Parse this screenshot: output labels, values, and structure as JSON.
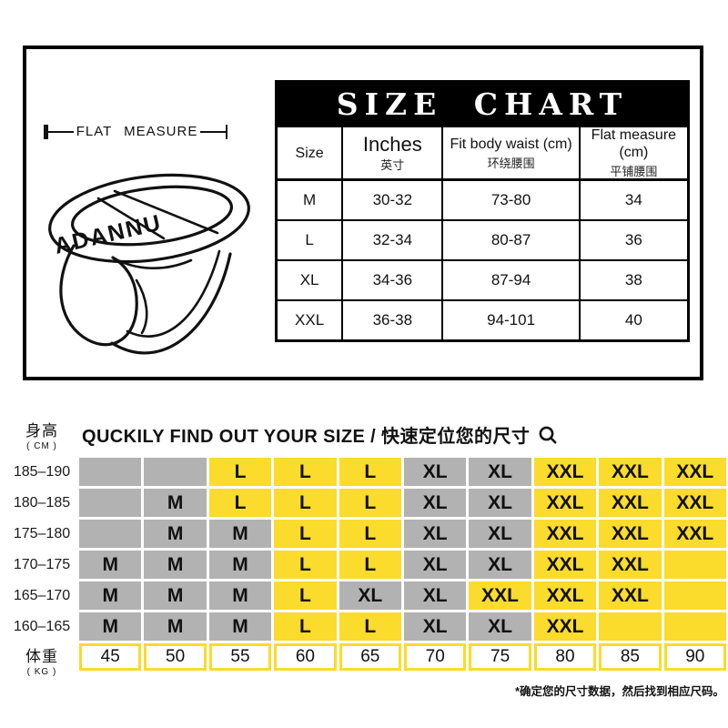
{
  "top_section": {
    "flat_measure_label": "FLAT MEASURE",
    "brand_text": "ADANNU",
    "size_chart": {
      "title": "SIZE CHART",
      "columns": [
        {
          "en": "Size",
          "zh": ""
        },
        {
          "en": "Inches",
          "zh": "英寸"
        },
        {
          "en": "Fit body waist (cm)",
          "zh": "环绕腰围"
        },
        {
          "en": "Flat measure (cm)",
          "zh": "平铺腰围"
        }
      ],
      "rows": [
        [
          "M",
          "30-32",
          "73-80",
          "34"
        ],
        [
          "L",
          "32-34",
          "80-87",
          "36"
        ],
        [
          "XL",
          "34-36",
          "87-94",
          "38"
        ],
        [
          "XXL",
          "36-38",
          "94-101",
          "40"
        ]
      ]
    }
  },
  "size_finder": {
    "height_label": "身高",
    "height_unit": "( CM )",
    "title": "QUCKILY FIND OUT YOUR SIZE / 快速定位您的尺寸",
    "search_icon": "magnifier-icon",
    "grid": {
      "rows": [
        {
          "height": "185–190",
          "cells": [
            {
              "v": "",
              "bg": "g"
            },
            {
              "v": "",
              "bg": "g"
            },
            {
              "v": "L",
              "bg": "y"
            },
            {
              "v": "L",
              "bg": "y"
            },
            {
              "v": "L",
              "bg": "y"
            },
            {
              "v": "XL",
              "bg": "g"
            },
            {
              "v": "XL",
              "bg": "g"
            },
            {
              "v": "XXL",
              "bg": "y"
            },
            {
              "v": "XXL",
              "bg": "y"
            },
            {
              "v": "XXL",
              "bg": "y"
            }
          ]
        },
        {
          "height": "180–185",
          "cells": [
            {
              "v": "",
              "bg": "g"
            },
            {
              "v": "M",
              "bg": "g"
            },
            {
              "v": "L",
              "bg": "y"
            },
            {
              "v": "L",
              "bg": "y"
            },
            {
              "v": "L",
              "bg": "y"
            },
            {
              "v": "XL",
              "bg": "g"
            },
            {
              "v": "XL",
              "bg": "g"
            },
            {
              "v": "XXL",
              "bg": "y"
            },
            {
              "v": "XXL",
              "bg": "y"
            },
            {
              "v": "XXL",
              "bg": "y"
            }
          ]
        },
        {
          "height": "175–180",
          "cells": [
            {
              "v": "",
              "bg": "g"
            },
            {
              "v": "M",
              "bg": "g"
            },
            {
              "v": "M",
              "bg": "g"
            },
            {
              "v": "L",
              "bg": "y"
            },
            {
              "v": "L",
              "bg": "y"
            },
            {
              "v": "XL",
              "bg": "g"
            },
            {
              "v": "XL",
              "bg": "g"
            },
            {
              "v": "XXL",
              "bg": "y"
            },
            {
              "v": "XXL",
              "bg": "y"
            },
            {
              "v": "XXL",
              "bg": "y"
            }
          ]
        },
        {
          "height": "170–175",
          "cells": [
            {
              "v": "M",
              "bg": "g"
            },
            {
              "v": "M",
              "bg": "g"
            },
            {
              "v": "M",
              "bg": "g"
            },
            {
              "v": "L",
              "bg": "y"
            },
            {
              "v": "L",
              "bg": "y"
            },
            {
              "v": "XL",
              "bg": "g"
            },
            {
              "v": "XL",
              "bg": "g"
            },
            {
              "v": "XXL",
              "bg": "y"
            },
            {
              "v": "XXL",
              "bg": "y"
            },
            {
              "v": "",
              "bg": "y"
            }
          ]
        },
        {
          "height": "165–170",
          "cells": [
            {
              "v": "M",
              "bg": "g"
            },
            {
              "v": "M",
              "bg": "g"
            },
            {
              "v": "M",
              "bg": "g"
            },
            {
              "v": "L",
              "bg": "y"
            },
            {
              "v": "XL",
              "bg": "g"
            },
            {
              "v": "XL",
              "bg": "g"
            },
            {
              "v": "XXL",
              "bg": "y"
            },
            {
              "v": "XXL",
              "bg": "y"
            },
            {
              "v": "XXL",
              "bg": "y"
            },
            {
              "v": "",
              "bg": "y"
            }
          ]
        },
        {
          "height": "160–165",
          "cells": [
            {
              "v": "M",
              "bg": "g"
            },
            {
              "v": "M",
              "bg": "g"
            },
            {
              "v": "M",
              "bg": "g"
            },
            {
              "v": "L",
              "bg": "y"
            },
            {
              "v": "L",
              "bg": "y"
            },
            {
              "v": "XL",
              "bg": "g"
            },
            {
              "v": "XL",
              "bg": "g"
            },
            {
              "v": "XXL",
              "bg": "y"
            },
            {
              "v": "",
              "bg": "y"
            },
            {
              "v": "",
              "bg": "y"
            }
          ]
        }
      ]
    },
    "weight_label": "体重",
    "weight_unit": "( KG )",
    "weights": [
      "45",
      "50",
      "55",
      "60",
      "65",
      "70",
      "75",
      "80",
      "85",
      "90"
    ],
    "footnote": "*确定您的尺寸数据，然后找到相应尺码。"
  },
  "colors": {
    "highlight_yellow": "#fbdb2b",
    "cell_gray": "#b2b2b2",
    "header_black": "#000000",
    "text_white": "#ffffff"
  },
  "chart_data": [
    {
      "type": "table",
      "title": "SIZE CHART",
      "columns": [
        "Size",
        "Inches 英寸",
        "Fit body waist (cm) 环绕腰围",
        "Flat measure (cm) 平铺腰围"
      ],
      "rows": [
        [
          "M",
          "30-32",
          "73-80",
          "34"
        ],
        [
          "L",
          "32-34",
          "80-87",
          "36"
        ],
        [
          "XL",
          "34-36",
          "87-94",
          "38"
        ],
        [
          "XXL",
          "36-38",
          "94-101",
          "40"
        ]
      ]
    },
    {
      "type": "table",
      "title": "QUCKILY FIND OUT YOUR SIZE / 快速定位您的尺寸",
      "xlabel": "体重 (KG)",
      "ylabel": "身高 (CM)",
      "x_values": [
        45,
        50,
        55,
        60,
        65,
        70,
        75,
        80,
        85,
        90
      ],
      "y_values": [
        "185-190",
        "180-185",
        "175-180",
        "170-175",
        "165-170",
        "160-165"
      ],
      "matrix": [
        [
          null,
          null,
          "L",
          "L",
          "L",
          "XL",
          "XL",
          "XXL",
          "XXL",
          "XXL"
        ],
        [
          null,
          "M",
          "L",
          "L",
          "L",
          "XL",
          "XL",
          "XXL",
          "XXL",
          "XXL"
        ],
        [
          null,
          "M",
          "M",
          "L",
          "L",
          "XL",
          "XL",
          "XXL",
          "XXL",
          "XXL"
        ],
        [
          "M",
          "M",
          "M",
          "L",
          "L",
          "XL",
          "XL",
          "XXL",
          "XXL",
          null
        ],
        [
          "M",
          "M",
          "M",
          "L",
          "XL",
          "XL",
          "XXL",
          "XXL",
          "XXL",
          null
        ],
        [
          "M",
          "M",
          "M",
          "L",
          "L",
          "XL",
          "XL",
          "XXL",
          null,
          null
        ]
      ],
      "footnote": "*确定您的尺寸数据，然后找到相应尺码。"
    }
  ]
}
